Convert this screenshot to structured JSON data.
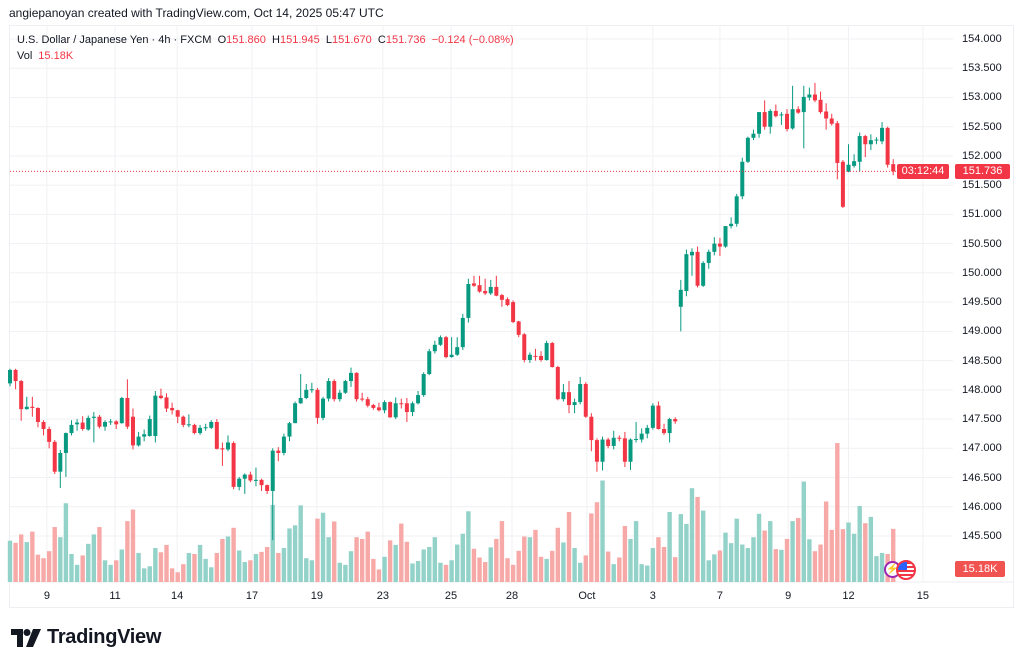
{
  "attribution": "angiepanoyan created with TradingView.com, Oct 14, 2025 05:47 UTC",
  "legend": {
    "symbol": "U.S. Dollar / Japanese Yen · 4h · FXCM",
    "open_label": "O",
    "open": "151.860",
    "high_label": "H",
    "high": "151.945",
    "low_label": "L",
    "low": "151.670",
    "close_label": "C",
    "close": "151.736",
    "change": "−0.124 (−0.08%)",
    "vol_label": "Vol",
    "vol": "15.18K"
  },
  "price_badge": {
    "price": "151.736",
    "countdown": "03:12:44"
  },
  "volume_badge": "15.18K",
  "logo_text": "TradingView",
  "colors": {
    "up": "#089981",
    "down": "#f23645",
    "vol_up": "#92d2c8",
    "vol_down": "#f7a9a7",
    "grid": "#f0f1f4"
  },
  "chart_data": {
    "type": "candlestick",
    "title": "U.S. Dollar / Japanese Yen · 4h · FXCM",
    "ylim": [
      145.5,
      154.0
    ],
    "price_ticks": [
      "154.000",
      "153.500",
      "153.000",
      "152.500",
      "152.000",
      "151.500",
      "151.000",
      "150.500",
      "150.000",
      "149.500",
      "149.000",
      "148.500",
      "148.000",
      "147.500",
      "147.000",
      "146.500",
      "146.000",
      "145.500"
    ],
    "time_ticks": [
      {
        "label": "9",
        "index": 6.6
      },
      {
        "label": "11",
        "index": 18.8
      },
      {
        "label": "14",
        "index": 29.9
      },
      {
        "label": "17",
        "index": 43.3
      },
      {
        "label": "19",
        "index": 54.9
      },
      {
        "label": "23",
        "index": 66.7
      },
      {
        "label": "25",
        "index": 78.9
      },
      {
        "label": "28",
        "index": 89.8
      },
      {
        "label": "Oct",
        "index": 103.2
      },
      {
        "label": "3",
        "index": 115
      },
      {
        "label": "7",
        "index": 127
      },
      {
        "label": "9",
        "index": 139.2
      },
      {
        "label": "12",
        "index": 150
      },
      {
        "label": "15",
        "index": 163.3
      }
    ],
    "last_price": 151.736,
    "volume_unit": "K",
    "candles_fields": [
      "open",
      "high",
      "low",
      "close",
      "volume_k"
    ],
    "candles": [
      [
        148.11,
        148.36,
        148.06,
        148.34,
        11.8
      ],
      [
        148.34,
        148.36,
        148.01,
        148.15,
        11.2
      ],
      [
        148.15,
        148.17,
        147.47,
        147.67,
        13.6
      ],
      [
        147.67,
        147.88,
        147.66,
        147.71,
        11.4
      ],
      [
        147.71,
        147.88,
        147.54,
        147.69,
        14.4
      ],
      [
        147.69,
        147.7,
        147.36,
        147.45,
        7.8
      ],
      [
        147.45,
        147.48,
        147.22,
        147.33,
        6.8
      ],
      [
        147.33,
        147.37,
        147.0,
        147.11,
        8.8
      ],
      [
        147.11,
        147.14,
        146.56,
        146.6,
        15.7
      ],
      [
        146.6,
        146.97,
        146.32,
        146.92,
        12.8
      ],
      [
        146.92,
        147.27,
        146.51,
        147.26,
        22.5
      ],
      [
        147.26,
        147.48,
        147.22,
        147.4,
        8.0
      ],
      [
        147.41,
        147.5,
        147.3,
        147.44,
        4.9
      ],
      [
        147.44,
        147.55,
        147.3,
        147.33,
        7.6
      ],
      [
        147.32,
        147.56,
        147.3,
        147.52,
        10.9
      ],
      [
        147.52,
        147.62,
        147.1,
        147.54,
        13.6
      ],
      [
        147.54,
        147.57,
        147.34,
        147.37,
        15.7
      ],
      [
        147.37,
        147.48,
        147.3,
        147.45,
        6.2
      ],
      [
        147.45,
        147.5,
        147.4,
        147.46,
        4.9
      ],
      [
        147.46,
        147.48,
        147.33,
        147.41,
        6.2
      ],
      [
        147.43,
        147.88,
        147.42,
        147.86,
        9.3
      ],
      [
        147.86,
        148.18,
        147.33,
        147.37,
        17.4
      ],
      [
        147.54,
        147.68,
        146.98,
        147.05,
        20.7
      ],
      [
        147.05,
        147.28,
        147.03,
        147.2,
        8.3
      ],
      [
        147.2,
        147.32,
        147.12,
        147.24,
        3.9
      ],
      [
        147.21,
        147.56,
        147.2,
        147.5,
        4.5
      ],
      [
        147.21,
        147.98,
        147.1,
        147.9,
        9.7
      ],
      [
        147.9,
        148.02,
        147.84,
        147.86,
        8.5
      ],
      [
        147.87,
        147.94,
        147.62,
        147.68,
        10.6
      ],
      [
        147.69,
        147.78,
        147.58,
        147.65,
        3.9
      ],
      [
        147.65,
        147.66,
        147.43,
        147.54,
        2.8
      ],
      [
        147.54,
        147.56,
        147.36,
        147.4,
        5.1
      ],
      [
        147.4,
        147.58,
        147.36,
        147.41,
        8.3
      ],
      [
        147.4,
        147.42,
        147.24,
        147.26,
        8.0
      ],
      [
        147.26,
        147.4,
        147.23,
        147.35,
        10.6
      ],
      [
        147.35,
        147.42,
        147.3,
        147.36,
        6.6
      ],
      [
        147.35,
        147.48,
        147.33,
        147.45,
        4.2
      ],
      [
        147.45,
        147.5,
        146.98,
        146.99,
        8.3
      ],
      [
        147.0,
        147.1,
        146.7,
        146.98,
        12.3
      ],
      [
        146.98,
        147.22,
        146.95,
        147.1,
        13.0
      ],
      [
        147.09,
        147.12,
        146.3,
        146.34,
        15.5
      ],
      [
        146.34,
        146.51,
        146.28,
        146.48,
        9.0
      ],
      [
        146.48,
        146.57,
        146.22,
        146.55,
        5.7
      ],
      [
        146.55,
        146.6,
        146.42,
        146.45,
        6.2
      ],
      [
        146.45,
        146.67,
        146.35,
        146.46,
        8.0
      ],
      [
        146.46,
        146.48,
        146.27,
        146.37,
        8.6
      ],
      [
        146.37,
        146.38,
        146.22,
        146.27,
        10.0
      ],
      [
        146.27,
        147.0,
        145.43,
        146.96,
        22.0
      ],
      [
        146.96,
        147.02,
        146.78,
        146.92,
        8.3
      ],
      [
        146.92,
        147.25,
        146.88,
        147.2,
        9.7
      ],
      [
        147.2,
        147.45,
        147.12,
        147.43,
        15.3
      ],
      [
        147.43,
        147.8,
        147.43,
        147.77,
        16.2
      ],
      [
        147.77,
        148.27,
        147.76,
        147.86,
        21.9
      ],
      [
        147.86,
        148.1,
        147.84,
        148.0,
        6.8
      ],
      [
        148.0,
        148.12,
        147.95,
        148.01,
        6.2
      ],
      [
        148.0,
        148.03,
        147.42,
        147.52,
        18.1
      ],
      [
        147.52,
        147.88,
        147.48,
        147.85,
        19.8
      ],
      [
        147.85,
        148.2,
        147.8,
        148.15,
        12.8
      ],
      [
        148.15,
        148.18,
        147.8,
        147.84,
        17.3
      ],
      [
        147.84,
        148.0,
        147.8,
        147.95,
        5.5
      ],
      [
        147.95,
        148.17,
        147.93,
        148.15,
        4.9
      ],
      [
        148.15,
        148.38,
        148.05,
        148.29,
        8.8
      ],
      [
        148.29,
        148.3,
        147.8,
        147.84,
        12.8
      ],
      [
        147.85,
        147.95,
        147.8,
        147.84,
        12.3
      ],
      [
        147.84,
        147.88,
        147.7,
        147.73,
        14.4
      ],
      [
        147.74,
        147.76,
        147.66,
        147.69,
        6.6
      ],
      [
        147.7,
        147.78,
        147.63,
        147.65,
        3.6
      ],
      [
        147.65,
        147.82,
        147.6,
        147.79,
        7.2
      ],
      [
        147.79,
        147.8,
        147.52,
        147.53,
        11.9
      ],
      [
        147.53,
        147.87,
        147.5,
        147.77,
        10.6
      ],
      [
        147.77,
        147.85,
        147.68,
        147.76,
        16.7
      ],
      [
        147.77,
        147.86,
        147.45,
        147.62,
        11.5
      ],
      [
        147.62,
        147.8,
        147.55,
        147.77,
        5.3
      ],
      [
        147.77,
        147.98,
        147.75,
        147.91,
        6.0
      ],
      [
        147.91,
        148.3,
        147.88,
        148.27,
        9.3
      ],
      [
        148.27,
        148.7,
        148.25,
        148.66,
        10.0
      ],
      [
        148.66,
        148.84,
        148.62,
        148.77,
        12.8
      ],
      [
        148.77,
        148.93,
        148.75,
        148.9,
        5.5
      ],
      [
        148.9,
        148.92,
        148.54,
        148.56,
        4.9
      ],
      [
        148.56,
        148.9,
        148.55,
        148.6,
        6.2
      ],
      [
        148.6,
        148.9,
        148.58,
        148.73,
        10.7
      ],
      [
        148.73,
        149.3,
        148.68,
        149.23,
        13.8
      ],
      [
        149.23,
        149.9,
        149.15,
        149.81,
        20.2
      ],
      [
        149.82,
        149.95,
        149.76,
        149.78,
        9.5
      ],
      [
        149.79,
        149.95,
        149.66,
        149.68,
        7.0
      ],
      [
        149.69,
        149.9,
        149.62,
        149.65,
        5.7
      ],
      [
        149.65,
        149.88,
        149.62,
        149.76,
        9.9
      ],
      [
        149.76,
        149.95,
        149.6,
        149.61,
        12.3
      ],
      [
        149.62,
        149.64,
        149.42,
        149.54,
        17.4
      ],
      [
        149.55,
        149.58,
        149.43,
        149.45,
        6.8
      ],
      [
        149.5,
        149.53,
        149.14,
        149.16,
        4.9
      ],
      [
        149.17,
        149.18,
        148.9,
        148.94,
        8.9
      ],
      [
        148.95,
        148.97,
        148.47,
        148.51,
        13.0
      ],
      [
        148.51,
        148.64,
        148.46,
        148.6,
        12.8
      ],
      [
        148.58,
        148.7,
        148.5,
        148.57,
        14.9
      ],
      [
        148.58,
        148.66,
        148.48,
        148.51,
        7.2
      ],
      [
        148.51,
        148.84,
        148.5,
        148.8,
        6.6
      ],
      [
        148.8,
        148.82,
        148.38,
        148.39,
        8.9
      ],
      [
        148.39,
        148.41,
        147.82,
        147.84,
        15.5
      ],
      [
        147.84,
        148.1,
        147.8,
        147.96,
        11.3
      ],
      [
        147.96,
        148.15,
        147.6,
        147.74,
        20.0
      ],
      [
        147.74,
        147.85,
        147.6,
        147.79,
        9.7
      ],
      [
        147.79,
        148.22,
        147.75,
        148.1,
        5.5
      ],
      [
        148.1,
        148.13,
        147.52,
        147.54,
        7.6
      ],
      [
        147.54,
        147.6,
        146.95,
        147.14,
        19.6
      ],
      [
        147.14,
        147.17,
        146.6,
        146.77,
        22.8
      ],
      [
        146.77,
        147.2,
        146.62,
        147.15,
        29.0
      ],
      [
        147.15,
        147.18,
        147.0,
        147.04,
        8.7
      ],
      [
        147.04,
        147.3,
        146.98,
        147.18,
        5.1
      ],
      [
        147.18,
        147.22,
        147.12,
        147.17,
        7.0
      ],
      [
        147.17,
        147.28,
        146.68,
        146.77,
        16.0
      ],
      [
        146.77,
        147.17,
        146.63,
        147.15,
        12.3
      ],
      [
        147.15,
        147.45,
        147.1,
        147.16,
        17.4
      ],
      [
        147.15,
        147.34,
        147.1,
        147.25,
        5.1
      ],
      [
        147.25,
        147.4,
        147.17,
        147.35,
        4.7
      ],
      [
        147.35,
        147.77,
        147.32,
        147.73,
        9.7
      ],
      [
        147.73,
        147.8,
        147.32,
        147.33,
        12.8
      ],
      [
        147.33,
        147.42,
        147.23,
        147.26,
        10.0
      ],
      [
        147.26,
        147.52,
        147.1,
        147.5,
        20.0
      ],
      [
        147.5,
        147.53,
        147.42,
        147.46,
        7.1
      ],
      [
        149.42,
        149.88,
        149.0,
        149.71,
        19.4
      ],
      [
        149.69,
        150.4,
        149.6,
        150.32,
        16.6
      ],
      [
        150.3,
        150.42,
        149.95,
        150.36,
        26.8
      ],
      [
        150.36,
        150.45,
        149.75,
        149.78,
        24.3
      ],
      [
        149.78,
        150.2,
        149.76,
        150.17,
        20.4
      ],
      [
        150.17,
        150.4,
        150.07,
        150.36,
        6.2
      ],
      [
        150.36,
        150.61,
        150.3,
        150.5,
        7.9
      ],
      [
        150.5,
        150.6,
        150.29,
        150.45,
        9.0
      ],
      [
        150.45,
        150.8,
        150.43,
        150.8,
        14.1
      ],
      [
        150.8,
        150.95,
        150.76,
        150.84,
        11.1
      ],
      [
        150.84,
        151.35,
        150.79,
        151.31,
        18.1
      ],
      [
        151.31,
        151.97,
        151.26,
        151.9,
        10.7
      ],
      [
        151.9,
        152.33,
        151.88,
        152.31,
        9.7
      ],
      [
        152.31,
        152.45,
        152.27,
        152.38,
        12.8
      ],
      [
        152.38,
        152.75,
        152.31,
        152.75,
        19.5
      ],
      [
        152.75,
        152.95,
        152.45,
        152.5,
        14.7
      ],
      [
        152.5,
        152.8,
        152.38,
        152.77,
        17.4
      ],
      [
        152.77,
        152.88,
        152.66,
        152.68,
        9.4
      ],
      [
        152.7,
        152.75,
        152.53,
        152.71,
        9.2
      ],
      [
        152.72,
        152.8,
        152.42,
        152.46,
        12.3
      ],
      [
        152.47,
        153.2,
        152.45,
        152.8,
        17.4
      ],
      [
        152.8,
        152.85,
        152.72,
        152.74,
        18.3
      ],
      [
        152.75,
        153.2,
        152.13,
        153.01,
        28.7
      ],
      [
        153.0,
        153.17,
        152.95,
        153.05,
        12.2
      ],
      [
        153.05,
        153.25,
        152.92,
        152.95,
        8.8
      ],
      [
        152.96,
        153.1,
        152.72,
        152.75,
        10.7
      ],
      [
        152.76,
        152.9,
        152.45,
        152.64,
        23.0
      ],
      [
        152.64,
        152.72,
        152.52,
        152.55,
        14.9
      ],
      [
        152.56,
        152.6,
        151.6,
        151.88,
        39.7
      ],
      [
        151.9,
        151.93,
        151.11,
        151.13,
        15.1
      ],
      [
        151.73,
        152.2,
        151.72,
        151.85,
        17.0
      ],
      [
        151.83,
        152.03,
        151.8,
        151.91,
        13.8
      ],
      [
        151.9,
        152.4,
        151.73,
        152.34,
        21.7
      ],
      [
        152.34,
        152.36,
        151.98,
        152.2,
        16.8
      ],
      [
        152.2,
        152.37,
        152.1,
        152.27,
        18.6
      ],
      [
        152.27,
        152.32,
        152.2,
        152.28,
        7.4
      ],
      [
        152.25,
        152.58,
        152.2,
        152.48,
        8.3
      ],
      [
        152.48,
        152.5,
        151.8,
        151.85,
        8.0
      ],
      [
        151.86,
        151.945,
        151.67,
        151.736,
        15.18
      ]
    ]
  }
}
